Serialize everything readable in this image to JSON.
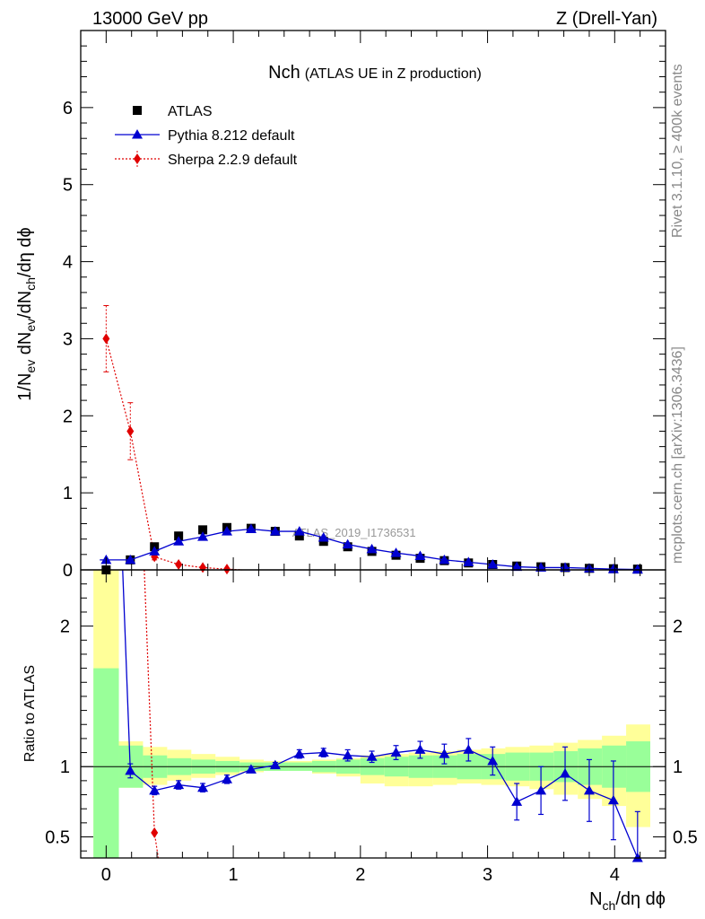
{
  "header": {
    "left": "13000 GeV pp",
    "right": "Z (Drell-Yan)"
  },
  "side": {
    "rivet": "Rivet 3.1.10, ≥ 400k events",
    "mcplots": "mcplots.cern.ch [arXiv:1306.3436]"
  },
  "chart_data": {
    "type": "scatter",
    "title_main": "Nch",
    "title_sub": "(ATLAS UE in Z production)",
    "watermark": "ATLAS_2019_I1736531",
    "ylabel_parts": [
      "1/N",
      "ev",
      " dN",
      "ev",
      "/dN",
      "ch",
      "/dη dϕ"
    ],
    "xlabel_parts": [
      "N",
      "ch",
      "/dη dϕ"
    ],
    "ratio_ylabel": "Ratio to ATLAS",
    "xlim": [
      -0.2,
      4.4
    ],
    "ylim_main": [
      0,
      7
    ],
    "ylim_ratio": [
      0.35,
      2.4
    ],
    "x_ticks": [
      0,
      1,
      2,
      3,
      4
    ],
    "y_ticks_main": [
      0,
      1,
      2,
      3,
      4,
      5,
      6
    ],
    "y_ticks_ratio": [
      0.5,
      1,
      2
    ],
    "x": [
      0.0,
      0.19,
      0.38,
      0.57,
      0.76,
      0.95,
      1.14,
      1.33,
      1.52,
      1.71,
      1.9,
      2.09,
      2.28,
      2.47,
      2.66,
      2.85,
      3.04,
      3.23,
      3.42,
      3.61,
      3.8,
      3.99,
      4.18
    ],
    "legend": [
      {
        "name": "ATLAS",
        "color": "#000000",
        "marker": "square"
      },
      {
        "name": "Pythia 8.212 default",
        "color": "#0000d0",
        "marker": "triangle"
      },
      {
        "name": "Sherpa 2.2.9 default",
        "color": "#e00000",
        "marker": "diamond"
      }
    ],
    "series": [
      {
        "name": "ATLAS",
        "values": [
          0.0,
          0.13,
          0.3,
          0.44,
          0.52,
          0.55,
          0.54,
          0.5,
          0.44,
          0.37,
          0.3,
          0.24,
          0.19,
          0.15,
          0.12,
          0.09,
          0.07,
          0.05,
          0.04,
          0.03,
          0.02,
          0.015,
          0.01
        ]
      },
      {
        "name": "Pythia 8.212 default",
        "values": [
          0.13,
          0.13,
          0.24,
          0.37,
          0.43,
          0.5,
          0.53,
          0.5,
          0.5,
          0.42,
          0.33,
          0.27,
          0.22,
          0.18,
          0.13,
          0.1,
          0.07,
          0.04,
          0.03,
          0.03,
          0.02,
          0.01,
          0.005
        ]
      },
      {
        "name": "Sherpa 2.2.9 default",
        "values": [
          3.0,
          1.8,
          0.17,
          0.07,
          0.03,
          0.01
        ],
        "errors": [
          0.43,
          0.37,
          0.04,
          0.02,
          0.01,
          0.005
        ]
      }
    ],
    "ratio": {
      "pythia": {
        "x": [
          0.19,
          0.38,
          0.57,
          0.76,
          0.95,
          1.14,
          1.33,
          1.52,
          1.71,
          1.9,
          2.09,
          2.28,
          2.47,
          2.66,
          2.85,
          3.04,
          3.23,
          3.42,
          3.61,
          3.8,
          3.99,
          4.18
        ],
        "values": [
          0.97,
          0.83,
          0.87,
          0.85,
          0.91,
          0.98,
          1.01,
          1.09,
          1.1,
          1.08,
          1.07,
          1.1,
          1.12,
          1.09,
          1.12,
          1.04,
          0.75,
          0.83,
          0.95,
          0.83,
          0.76,
          0.33
        ],
        "errors": [
          0.05,
          0.03,
          0.03,
          0.03,
          0.03,
          0.02,
          0.02,
          0.03,
          0.03,
          0.04,
          0.04,
          0.05,
          0.06,
          0.07,
          0.08,
          0.1,
          0.13,
          0.17,
          0.19,
          0.22,
          0.28,
          0.35
        ],
        "line_start": [
          0.13,
          2.6
        ]
      },
      "sherpa": {
        "x": [
          0.38,
          0.41
        ],
        "values": [
          0.53,
          0.35
        ],
        "line_start": [
          0.3,
          2.6
        ]
      },
      "bands": {
        "edges": [
          -0.1,
          0.1,
          0.29,
          0.48,
          0.67,
          0.86,
          1.05,
          1.24,
          1.43,
          1.62,
          1.81,
          2.0,
          2.19,
          2.38,
          2.57,
          2.76,
          2.95,
          3.14,
          3.33,
          3.52,
          3.71,
          3.9,
          4.09,
          4.28
        ],
        "green_lo": [
          0.33,
          0.85,
          0.92,
          0.94,
          0.95,
          0.96,
          0.97,
          0.97,
          0.97,
          0.96,
          0.95,
          0.94,
          0.93,
          0.92,
          0.92,
          0.91,
          0.91,
          0.9,
          0.9,
          0.89,
          0.87,
          0.85,
          0.82
        ],
        "green_hi": [
          1.7,
          1.15,
          1.08,
          1.06,
          1.05,
          1.04,
          1.03,
          1.03,
          1.03,
          1.04,
          1.05,
          1.06,
          1.07,
          1.08,
          1.08,
          1.09,
          1.09,
          1.1,
          1.1,
          1.11,
          1.13,
          1.15,
          1.18
        ],
        "yellow_lo": [
          0.33,
          0.85,
          0.87,
          0.9,
          0.92,
          0.94,
          0.96,
          0.97,
          0.97,
          0.95,
          0.93,
          0.88,
          0.86,
          0.86,
          0.87,
          0.88,
          0.87,
          0.86,
          0.84,
          0.8,
          0.77,
          0.72,
          0.57
        ],
        "yellow_hi": [
          2.4,
          1.18,
          1.14,
          1.12,
          1.09,
          1.07,
          1.05,
          1.04,
          1.04,
          1.05,
          1.06,
          1.08,
          1.09,
          1.1,
          1.11,
          1.12,
          1.13,
          1.14,
          1.15,
          1.17,
          1.19,
          1.22,
          1.3
        ]
      }
    }
  }
}
